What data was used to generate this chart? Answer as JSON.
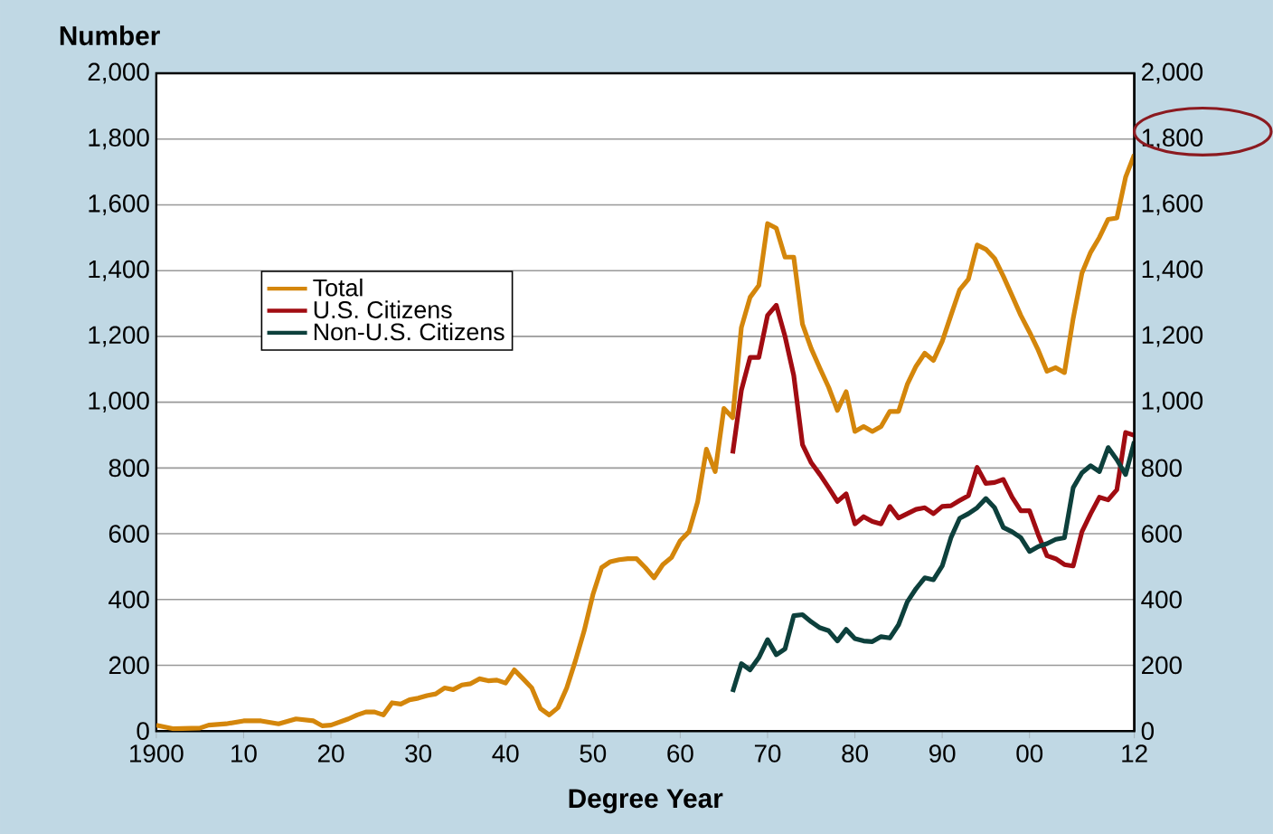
{
  "chart_data": {
    "type": "line",
    "ylabel": "Number",
    "xlabel": "Degree Year",
    "xlim": [
      1900,
      2012
    ],
    "xticks": [
      1900,
      {
        "value": 1910,
        "label": "10"
      },
      {
        "value": 1920,
        "label": "20"
      },
      {
        "value": 1930,
        "label": "30"
      },
      {
        "value": 1940,
        "label": "40"
      },
      {
        "value": 1950,
        "label": "50"
      },
      {
        "value": 1960,
        "label": "60"
      },
      {
        "value": 1970,
        "label": "70"
      },
      {
        "value": 1980,
        "label": "80"
      },
      {
        "value": 1990,
        "label": "90"
      },
      {
        "value": 2000,
        "label": "00"
      },
      {
        "value": 2012,
        "label": "12"
      }
    ],
    "ylim": [
      0,
      2000
    ],
    "yticks": [
      0,
      200,
      400,
      600,
      800,
      {
        "value": 1000,
        "label": "1,000"
      },
      {
        "value": 1200,
        "label": "1,200"
      },
      {
        "value": 1400,
        "label": "1,400"
      },
      {
        "value": 1600,
        "label": "1,600"
      },
      {
        "value": 1800,
        "label": "1,800"
      },
      {
        "value": 2000,
        "label": "2,000"
      }
    ],
    "y2lim": [
      0,
      2000
    ],
    "y2ticks": [
      0,
      200,
      400,
      600,
      800,
      {
        "value": 1000,
        "label": "1,000"
      },
      {
        "value": 1200,
        "label": "1,200"
      },
      {
        "value": 1400,
        "label": "1,400"
      },
      {
        "value": 1600,
        "label": "1,600"
      },
      {
        "value": 1800,
        "label": "1,800"
      },
      {
        "value": 2000,
        "label": "2,000"
      }
    ],
    "grid": "y",
    "legend": "left",
    "marker": "none",
    "line_style": "solid",
    "series": [
      {
        "name": "Total",
        "color": "#d4860b",
        "x": [
          1900,
          1902,
          1905,
          1906,
          1908,
          1910,
          1912,
          1914,
          1916,
          1918,
          1919,
          1920,
          1922,
          1923,
          1924,
          1925,
          1926,
          1927,
          1928,
          1929,
          1930,
          1931,
          1932,
          1933,
          1934,
          1935,
          1936,
          1937,
          1938,
          1939,
          1940,
          1941,
          1942,
          1943,
          1944,
          1945,
          1946,
          1947,
          1948,
          1949,
          1950,
          1951,
          1952,
          1953,
          1954,
          1955,
          1956,
          1957,
          1958,
          1959,
          1960,
          1961,
          1962,
          1963,
          1964,
          1965,
          1966,
          1967,
          1968,
          1969,
          1970,
          1971,
          1972,
          1973,
          1974,
          1975,
          1976,
          1977,
          1978,
          1979,
          1980,
          1981,
          1982,
          1983,
          1984,
          1985,
          1986,
          1987,
          1988,
          1989,
          1990,
          1991,
          1992,
          1993,
          1994,
          1995,
          1996,
          1997,
          1998,
          1999,
          2000,
          2001,
          2002,
          2003,
          2004,
          2005,
          2006,
          2007,
          2008,
          2009,
          2010,
          2011,
          2012
        ],
        "values": [
          18,
          7,
          9,
          18,
          22,
          31,
          31,
          22,
          37,
          31,
          16,
          18,
          37,
          49,
          58,
          58,
          49,
          86,
          82,
          95,
          100,
          108,
          113,
          131,
          126,
          140,
          144,
          159,
          153,
          155,
          146,
          186,
          159,
          131,
          68,
          49,
          71,
          131,
          214,
          305,
          415,
          497,
          515,
          521,
          524,
          524,
          497,
          466,
          506,
          528,
          579,
          606,
          698,
          857,
          789,
          981,
          953,
          1227,
          1319,
          1355,
          1543,
          1529,
          1441,
          1441,
          1237,
          1163,
          1103,
          1045,
          975,
          1032,
          911,
          926,
          911,
          926,
          972,
          972,
          1054,
          1109,
          1149,
          1127,
          1185,
          1264,
          1342,
          1374,
          1478,
          1465,
          1437,
          1383,
          1324,
          1264,
          1213,
          1158,
          1094,
          1105,
          1090,
          1255,
          1392,
          1456,
          1501,
          1556,
          1560,
          1684,
          1753
        ]
      },
      {
        "name": "U.S. Citizens",
        "color": "#a10c12",
        "x": [
          1966,
          1967,
          1968,
          1969,
          1970,
          1971,
          1972,
          1973,
          1974,
          1975,
          1976,
          1977,
          1978,
          1979,
          1980,
          1981,
          1982,
          1983,
          1984,
          1985,
          1986,
          1987,
          1988,
          1989,
          1990,
          1991,
          1992,
          1993,
          1994,
          1995,
          1996,
          1997,
          1998,
          1999,
          2000,
          2001,
          2002,
          2003,
          2004,
          2005,
          2006,
          2007,
          2008,
          2009,
          2010,
          2011,
          2012
        ],
        "values": [
          844,
          1036,
          1136,
          1136,
          1264,
          1295,
          1200,
          1081,
          871,
          816,
          780,
          740,
          698,
          721,
          630,
          652,
          637,
          630,
          683,
          648,
          661,
          674,
          679,
          661,
          683,
          685,
          701,
          716,
          802,
          753,
          756,
          765,
          711,
          670,
          670,
          597,
          533,
          524,
          506,
          502,
          606,
          661,
          711,
          703,
          734,
          908,
          899
        ]
      },
      {
        "name": "Non-U.S. Citizens",
        "color": "#0d403c",
        "x": [
          1966,
          1967,
          1968,
          1969,
          1970,
          1971,
          1972,
          1973,
          1974,
          1975,
          1976,
          1977,
          1978,
          1979,
          1980,
          1981,
          1982,
          1983,
          1984,
          1985,
          1986,
          1987,
          1988,
          1989,
          1990,
          1991,
          1992,
          1993,
          1994,
          1995,
          1996,
          1997,
          1998,
          1999,
          2000,
          2001,
          2002,
          2003,
          2004,
          2005,
          2006,
          2007,
          2008,
          2009,
          2010,
          2011,
          2012
        ],
        "values": [
          119,
          205,
          186,
          223,
          278,
          232,
          250,
          351,
          354,
          332,
          314,
          305,
          274,
          309,
          281,
          274,
          272,
          287,
          283,
          323,
          393,
          433,
          466,
          460,
          502,
          588,
          647,
          661,
          679,
          707,
          679,
          619,
          606,
          588,
          546,
          561,
          570,
          583,
          588,
          740,
          785,
          807,
          789,
          862,
          825,
          780,
          880
        ]
      }
    ]
  }
}
